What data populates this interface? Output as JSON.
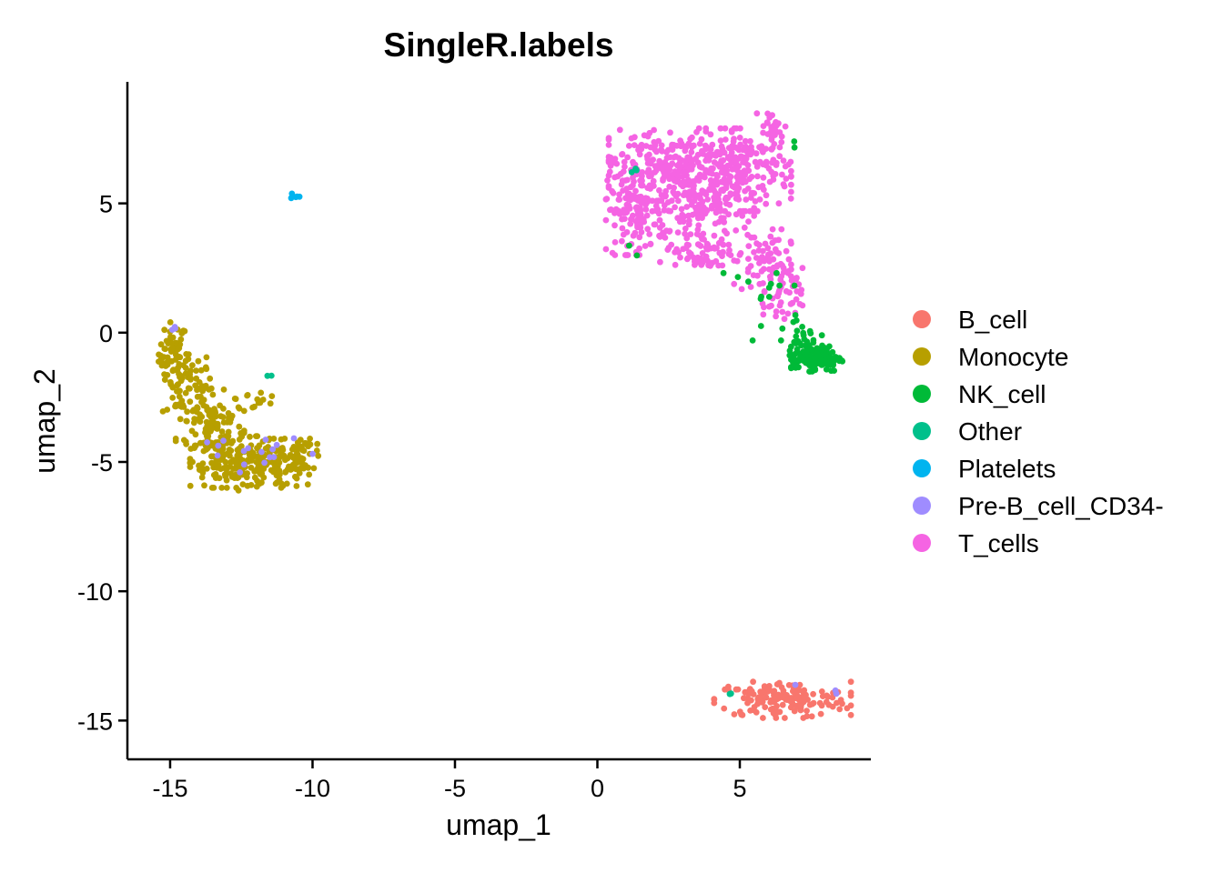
{
  "chart_data": {
    "type": "scatter",
    "title": "SingleR.labels",
    "xlabel": "umap_1",
    "ylabel": "umap_2",
    "xlim": [
      -16.5,
      9.6
    ],
    "ylim": [
      -16.5,
      9.7
    ],
    "xticks": [
      -15,
      -10,
      -5,
      0,
      5
    ],
    "xtick_labels": [
      "-15",
      "-10",
      "-5",
      "0",
      "5"
    ],
    "yticks": [
      -15,
      -10,
      -5,
      0,
      5
    ],
    "ytick_labels": [
      "-15",
      "-10",
      "-5",
      "0",
      "5"
    ],
    "grid": false,
    "legend_position": "right",
    "series": [
      {
        "name": "B_cell",
        "color": "#F8766D",
        "regions": [
          {
            "center": [
              6.5,
              -14.2
            ],
            "spread": [
              1.2,
              0.35
            ],
            "count": 160
          }
        ]
      },
      {
        "name": "Monocyte",
        "color": "#B79F00",
        "regions": [
          {
            "center": [
              -14.9,
              -0.8
            ],
            "spread": [
              0.25,
              0.6
            ],
            "count": 50
          },
          {
            "center": [
              -14.4,
              -2.0
            ],
            "spread": [
              0.45,
              0.7
            ],
            "count": 70
          },
          {
            "center": [
              -13.6,
              -3.6
            ],
            "spread": [
              0.6,
              0.7
            ],
            "count": 110
          },
          {
            "center": [
              -12.7,
              -5.0
            ],
            "spread": [
              0.8,
              0.5
            ],
            "count": 140
          },
          {
            "center": [
              -11.2,
              -5.1
            ],
            "spread": [
              0.7,
              0.5
            ],
            "count": 110
          },
          {
            "center": [
              -10.3,
              -4.7
            ],
            "spread": [
              0.35,
              0.3
            ],
            "count": 25
          },
          {
            "center": [
              -12.0,
              -2.6
            ],
            "spread": [
              0.4,
              0.25
            ],
            "count": 12
          }
        ]
      },
      {
        "name": "NK_cell",
        "color": "#00BA38",
        "regions": [
          {
            "center": [
              7.7,
              -1.0
            ],
            "spread": [
              0.45,
              0.25
            ],
            "count": 130
          },
          {
            "center": [
              7.2,
              -0.2
            ],
            "spread": [
              0.4,
              0.4
            ],
            "count": 25
          },
          {
            "center": [
              6.3,
              1.5
            ],
            "spread": [
              0.5,
              0.9
            ],
            "count": 14
          },
          {
            "center": [
              7.1,
              7.2
            ],
            "spread": [
              0.1,
              0.1
            ],
            "count": 2
          },
          {
            "center": [
              4.5,
              2.1
            ],
            "spread": [
              0.3,
              0.2
            ],
            "count": 2
          },
          {
            "center": [
              1.2,
              3.1
            ],
            "spread": [
              0.3,
              0.2
            ],
            "count": 2
          }
        ]
      },
      {
        "name": "Other",
        "color": "#00C08B",
        "regions": [
          {
            "center": [
              1.4,
              6.2
            ],
            "spread": [
              0.12,
              0.08
            ],
            "count": 3
          },
          {
            "center": [
              -11.5,
              -1.7
            ],
            "spread": [
              0.06,
              0.06
            ],
            "count": 2
          },
          {
            "center": [
              4.6,
              -14.0
            ],
            "spread": [
              0.1,
              0.06
            ],
            "count": 2
          }
        ]
      },
      {
        "name": "Platelets",
        "color": "#00B4EF",
        "regions": [
          {
            "center": [
              -10.6,
              5.3
            ],
            "spread": [
              0.08,
              0.06
            ],
            "count": 5
          }
        ]
      },
      {
        "name": "Pre-B_cell_CD34-",
        "color": "#9F8CFF",
        "regions": [
          {
            "center": [
              -14.8,
              0.1
            ],
            "spread": [
              0.1,
              0.08
            ],
            "count": 3
          },
          {
            "center": [
              -11.4,
              -4.6
            ],
            "spread": [
              0.7,
              0.4
            ],
            "count": 12
          },
          {
            "center": [
              -13.4,
              -4.3
            ],
            "spread": [
              0.5,
              0.4
            ],
            "count": 5
          },
          {
            "center": [
              8.4,
              -13.9
            ],
            "spread": [
              0.1,
              0.1
            ],
            "count": 2
          },
          {
            "center": [
              7.0,
              -13.6
            ],
            "spread": [
              0.1,
              0.1
            ],
            "count": 1
          }
        ]
      },
      {
        "name": "T_cells",
        "color": "#F564E3",
        "regions": [
          {
            "center": [
              2.8,
              6.5
            ],
            "spread": [
              1.2,
              0.7
            ],
            "count": 260
          },
          {
            "center": [
              1.3,
              4.8
            ],
            "spread": [
              0.5,
              0.9
            ],
            "count": 140
          },
          {
            "center": [
              5.2,
              6.3
            ],
            "spread": [
              0.8,
              0.8
            ],
            "count": 170
          },
          {
            "center": [
              3.5,
              4.8
            ],
            "spread": [
              1.0,
              0.7
            ],
            "count": 150
          },
          {
            "center": [
              3.8,
              3.2
            ],
            "spread": [
              0.8,
              0.4
            ],
            "count": 70
          },
          {
            "center": [
              5.8,
              2.8
            ],
            "spread": [
              0.5,
              0.6
            ],
            "count": 60
          },
          {
            "center": [
              6.5,
              1.3
            ],
            "spread": [
              0.35,
              0.6
            ],
            "count": 45
          },
          {
            "center": [
              6.1,
              8.0
            ],
            "spread": [
              0.25,
              0.3
            ],
            "count": 20
          }
        ]
      }
    ]
  }
}
